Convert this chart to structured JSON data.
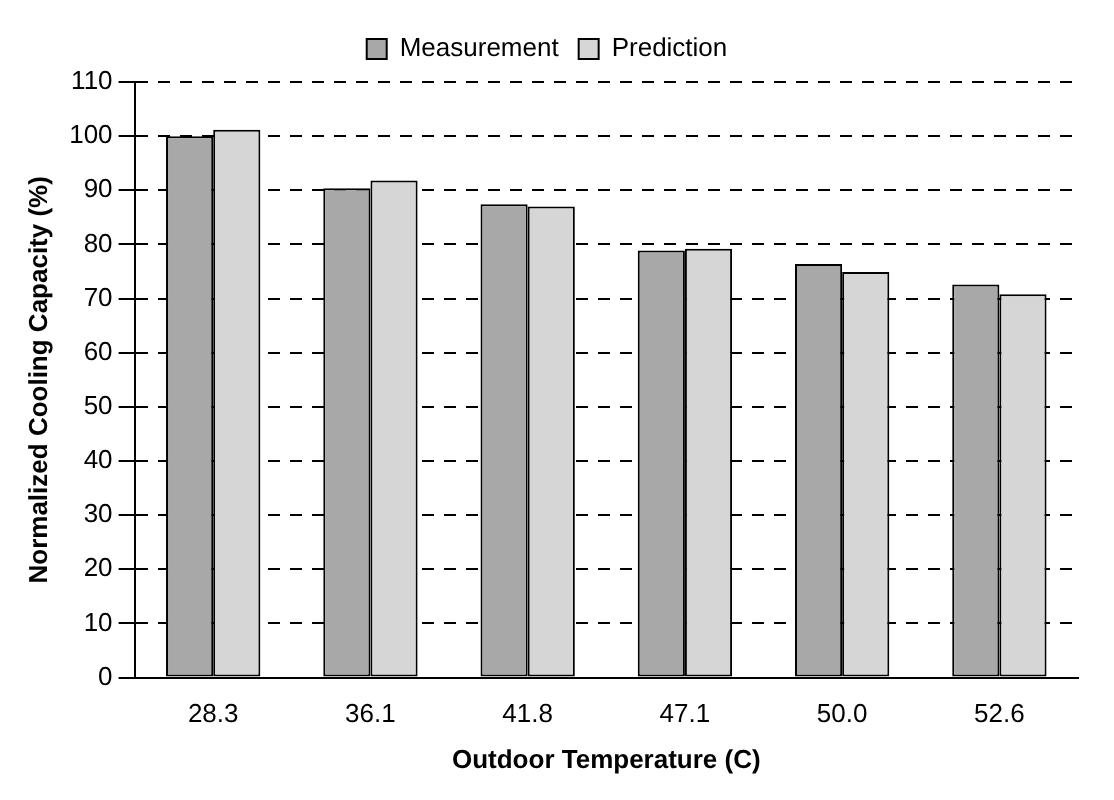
{
  "chart_data": {
    "type": "bar",
    "xlabel": "Outdoor Temperature (C)",
    "ylabel": "Normalized Cooling Capacity (%)",
    "categories": [
      "28.3",
      "36.1",
      "41.8",
      "47.1",
      "50.0",
      "52.6"
    ],
    "series": [
      {
        "name": "Measurement",
        "color": "#a8a8a8",
        "values": [
          100,
          90.4,
          87.4,
          78.9,
          76.4,
          72.6
        ]
      },
      {
        "name": "Prediction",
        "color": "#d6d6d6",
        "values": [
          101.2,
          91.8,
          87,
          79.2,
          74.9,
          70.8
        ]
      }
    ],
    "ylim": [
      0,
      110
    ],
    "yticks": [
      0,
      10,
      20,
      30,
      40,
      50,
      60,
      70,
      80,
      90,
      100,
      110
    ],
    "grid": "y",
    "legend": "top"
  }
}
